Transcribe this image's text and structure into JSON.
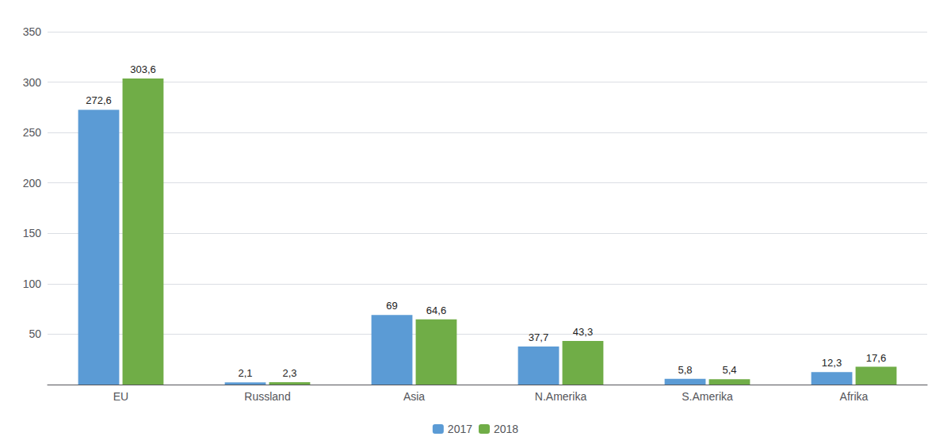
{
  "chart_data": {
    "type": "bar",
    "categories": [
      "EU",
      "Russland",
      "Asia",
      "N.Amerika",
      "S.Amerika",
      "Afrika"
    ],
    "series": [
      {
        "name": "2017",
        "color": "#5B9BD5",
        "values": [
          272.6,
          2.1,
          69.0,
          37.7,
          5.8,
          12.3
        ],
        "value_labels": [
          "272,6",
          "2,1",
          "69",
          "37,7",
          "5,8",
          "12,3"
        ]
      },
      {
        "name": "2018",
        "color": "#70AD47",
        "values": [
          303.6,
          2.3,
          64.6,
          43.3,
          5.4,
          17.6
        ],
        "value_labels": [
          "303,6",
          "2,3",
          "64,6",
          "43,3",
          "5,4",
          "17,6"
        ]
      }
    ],
    "ylim": [
      0,
      350
    ],
    "yticks": [
      50,
      100,
      150,
      200,
      250,
      300,
      350
    ],
    "grid": true,
    "legend": "bottom",
    "data_labels": true
  }
}
